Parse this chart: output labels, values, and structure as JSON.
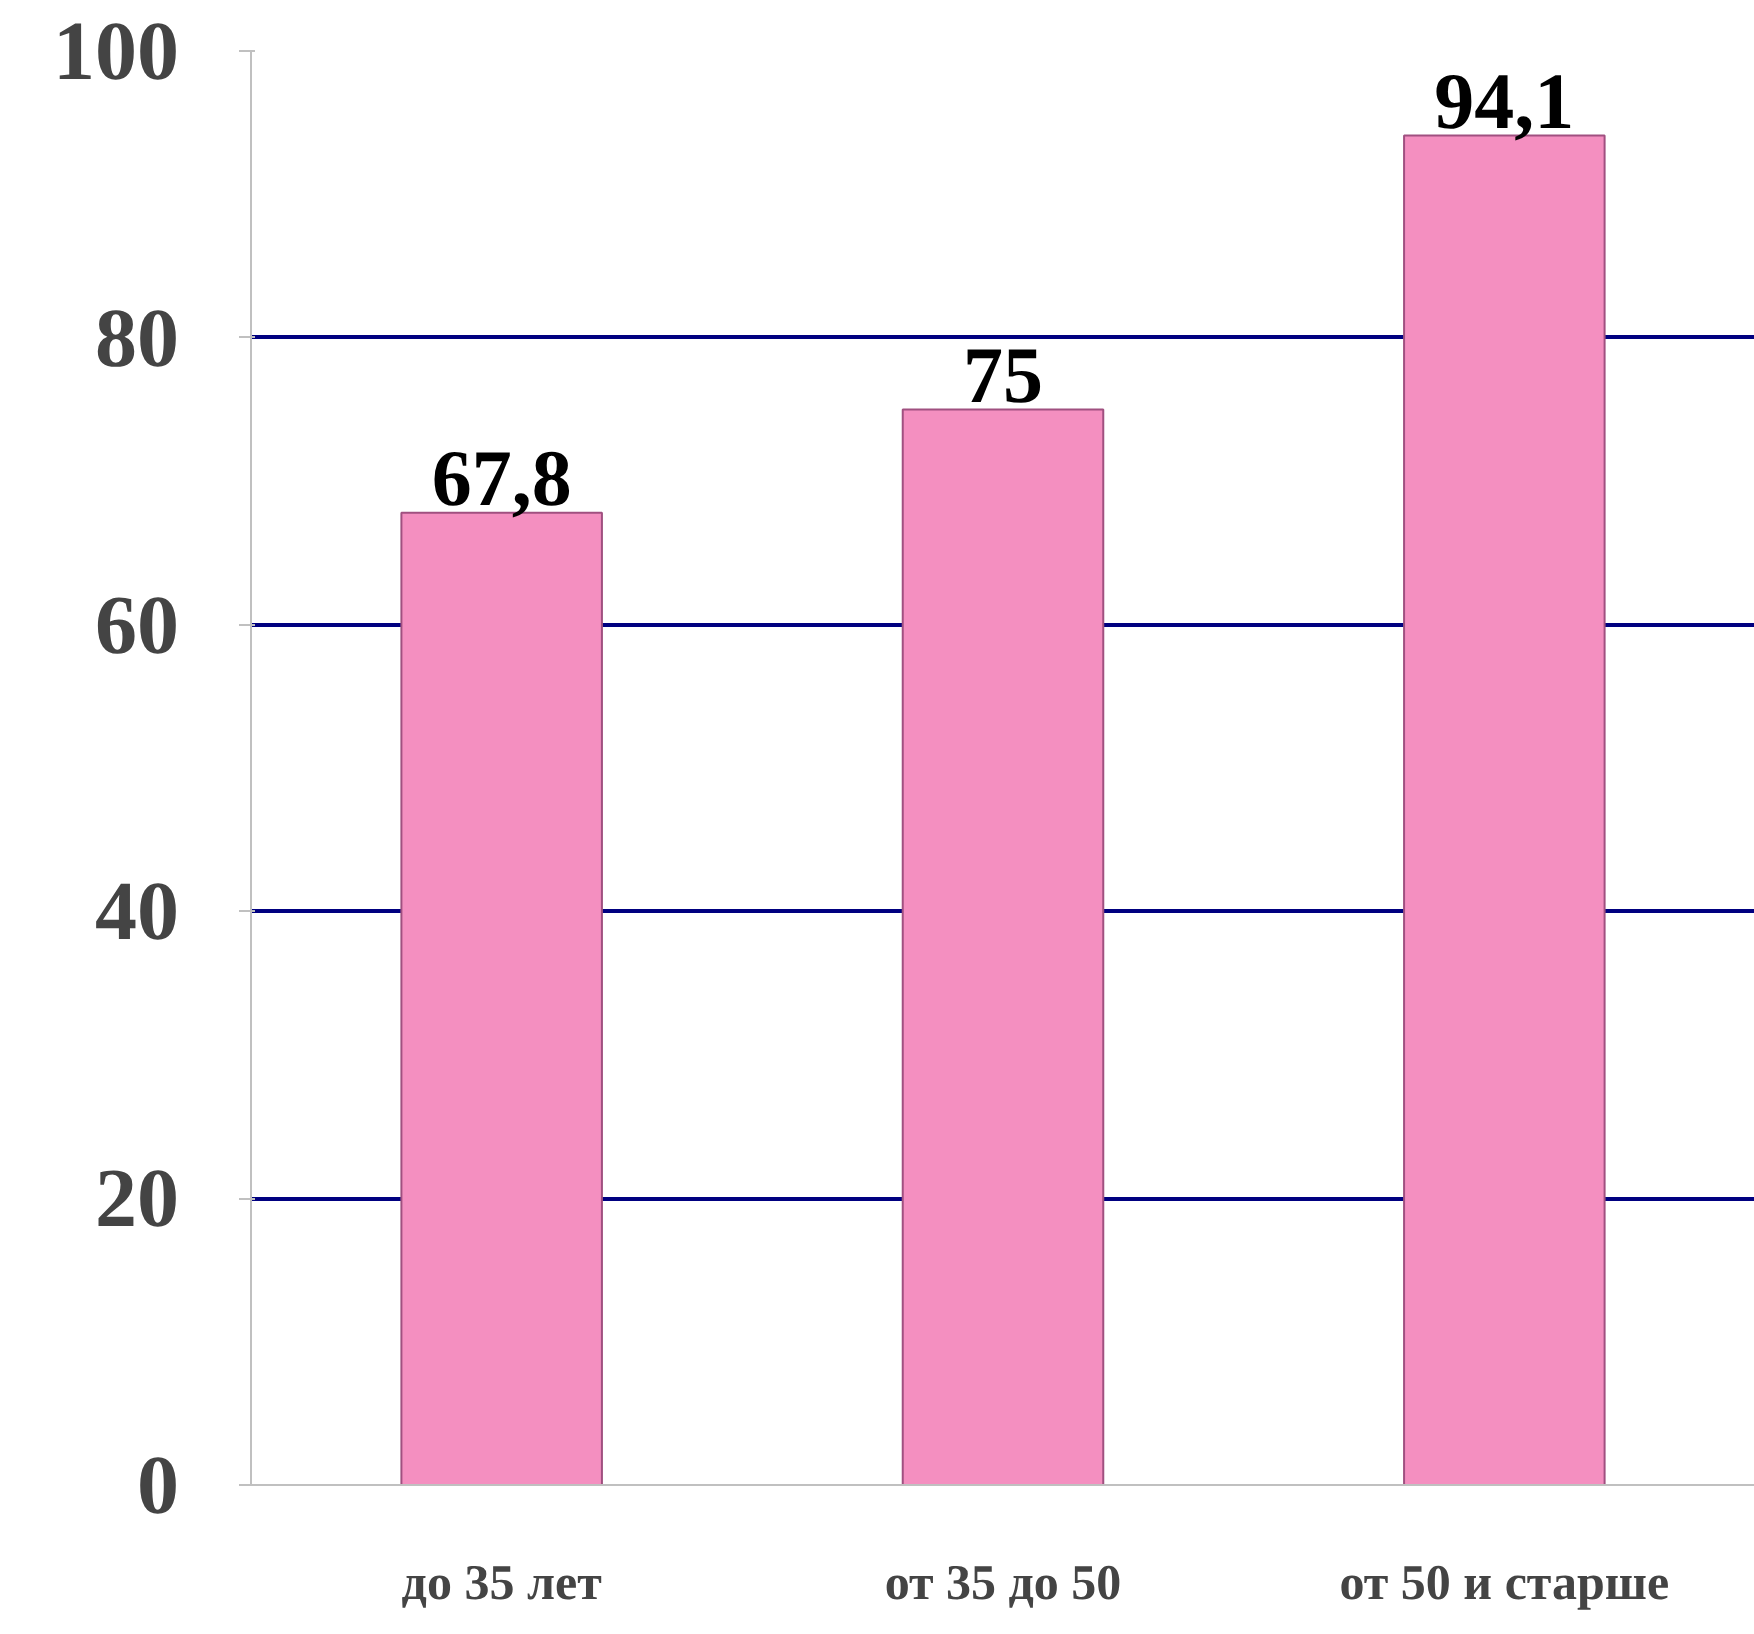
{
  "chart_data": {
    "type": "bar",
    "categories": [
      "до 35 лет",
      "от 35 до 50",
      "от 50 и старше"
    ],
    "values": [
      67.8,
      75,
      94.1
    ],
    "value_labels": [
      "67,8",
      "75",
      "94,1"
    ],
    "color": "#f48fc0",
    "ylim": [
      0,
      100
    ],
    "yticks": [
      0,
      20,
      40,
      60,
      80,
      100
    ],
    "grid": "y"
  }
}
